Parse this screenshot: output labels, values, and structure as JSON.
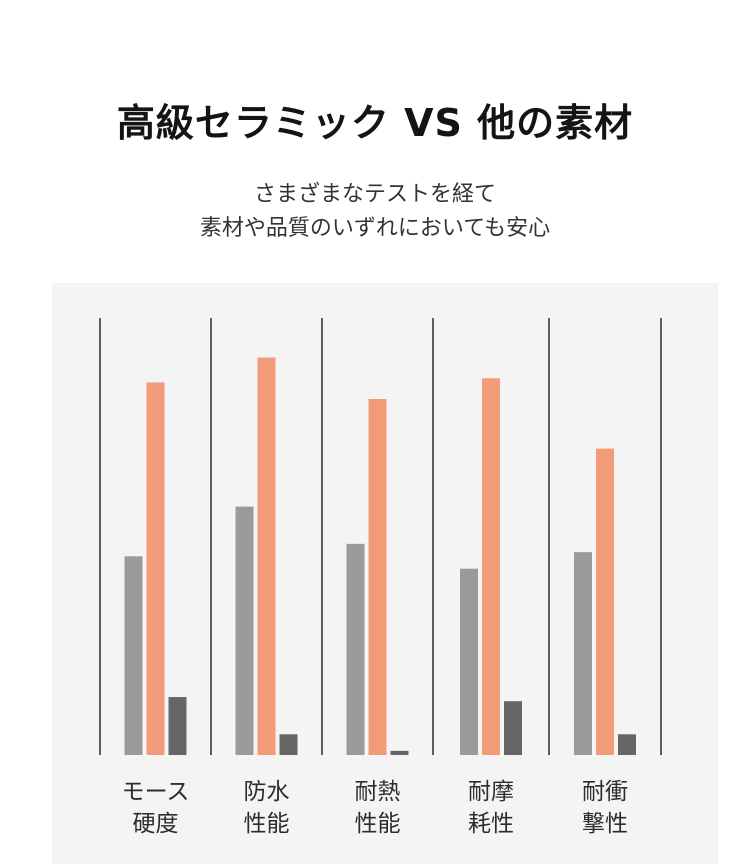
{
  "header": {
    "title": "高級セラミック VS 他の素材",
    "subtitle_line1": "さまざまなテストを経て",
    "subtitle_line2": "素材や品質のいずれにおいても安心"
  },
  "colors": {
    "gray": "#9a9a9a",
    "orange": "#f29b78",
    "dark": "#666666",
    "divider": "#2a2a2a",
    "panel": "#f4f4f4",
    "label": "#2d2d2d"
  },
  "chart_data": {
    "type": "bar",
    "title": "",
    "xlabel": "",
    "ylabel": "",
    "grid": false,
    "categories": [
      [
        "モース",
        "硬度"
      ],
      [
        "防水",
        "性能"
      ],
      [
        "耐熱",
        "性能"
      ],
      [
        "耐摩",
        "耗性"
      ],
      [
        "耐衝",
        "撃性"
      ]
    ],
    "ylim": [
      0,
      100
    ],
    "series": [
      {
        "color": "#9a9a9a",
        "values": [
          48,
          60,
          51,
          45,
          49
        ]
      },
      {
        "color": "#f29b78",
        "values": [
          90,
          96,
          86,
          91,
          74
        ]
      },
      {
        "color": "#666666",
        "values": [
          14,
          5,
          1,
          13,
          5
        ]
      }
    ]
  }
}
